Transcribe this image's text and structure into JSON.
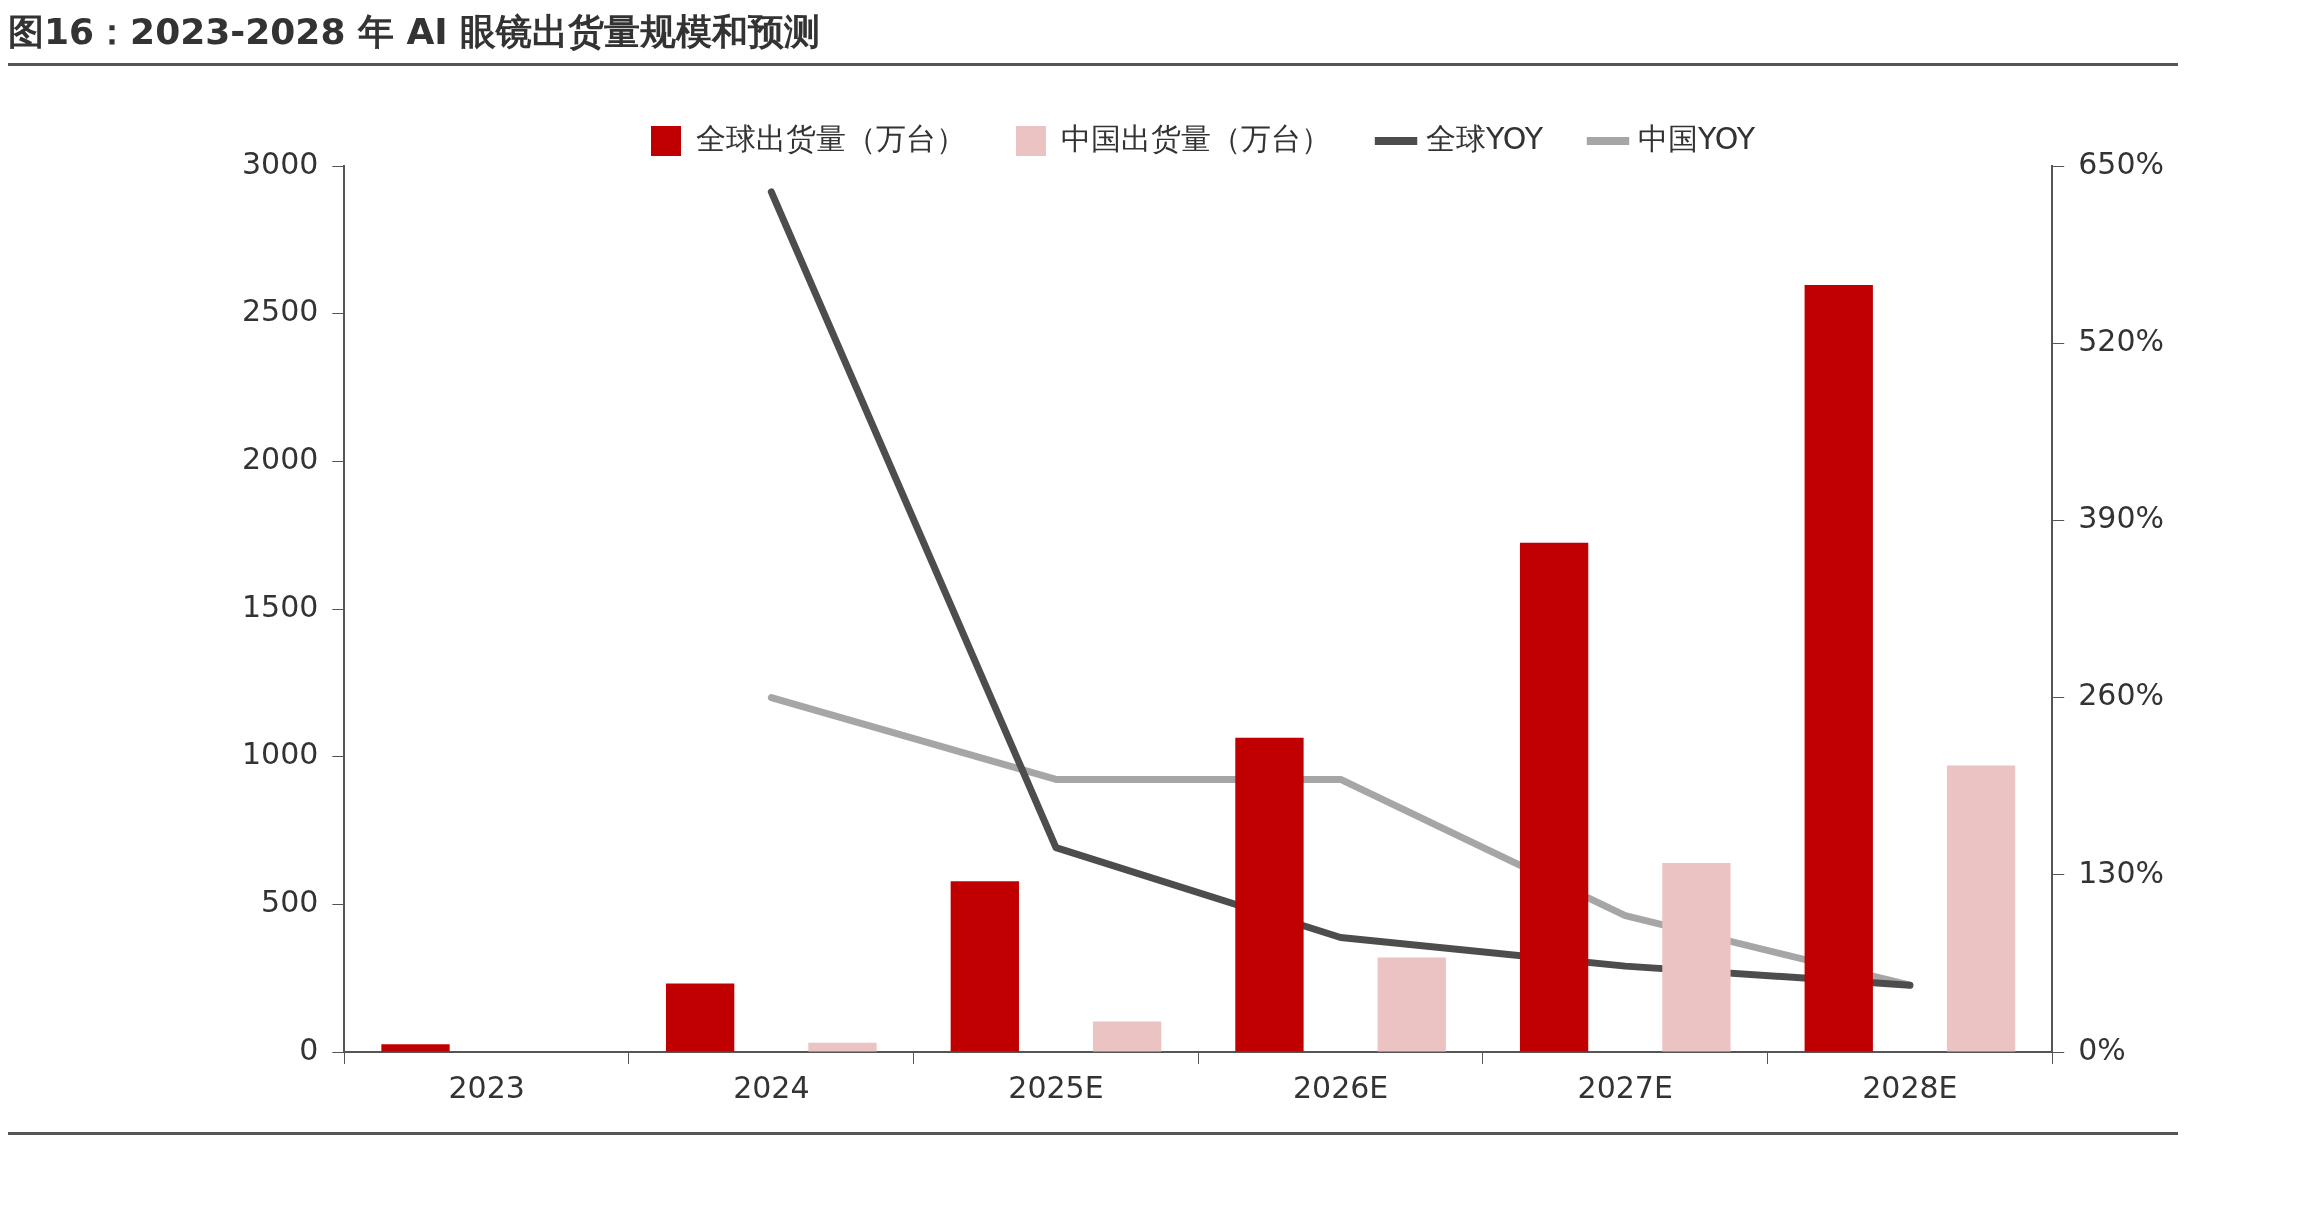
{
  "chart_data": {
    "type": "bar",
    "title": "图16：2023-2028 年 AI 眼镜出货量规模和预测",
    "categories": [
      "2023",
      "2024",
      "2025E",
      "2026E",
      "2027E",
      "2028E"
    ],
    "series": [
      {
        "name": "全球出货量（万台）",
        "color": "#c00000",
        "values": [
          26,
          232,
          578,
          1064,
          1724,
          2597
        ]
      },
      {
        "name": "中国出货量（万台）",
        "color": "#ebc3c3",
        "values": [
          null,
          31,
          103,
          320,
          640,
          970
        ]
      },
      {
        "name": "全球YOY",
        "type": "line",
        "axis": "y2",
        "color": "#4d4d4d",
        "values": [
          null,
          631,
          150,
          84,
          63,
          49
        ]
      },
      {
        "name": "中国YOY",
        "type": "line",
        "axis": "y2",
        "color": "#a6a6a6",
        "values": [
          null,
          260,
          200,
          200,
          100,
          49
        ]
      }
    ],
    "ylim": [
      0,
      3000
    ],
    "yticks": [
      0,
      500,
      1000,
      1500,
      2000,
      2500,
      3000
    ],
    "y2lim": [
      0,
      650
    ],
    "y2ticks": [
      {
        "value": 0,
        "label": "0%"
      },
      {
        "value": 130,
        "label": "130%"
      },
      {
        "value": 260,
        "label": "260%"
      },
      {
        "value": 390,
        "label": "390%"
      },
      {
        "value": 520,
        "label": "520%"
      },
      {
        "value": 650,
        "label": "650%"
      }
    ],
    "grid": false,
    "legend": "top",
    "marker": "none"
  }
}
